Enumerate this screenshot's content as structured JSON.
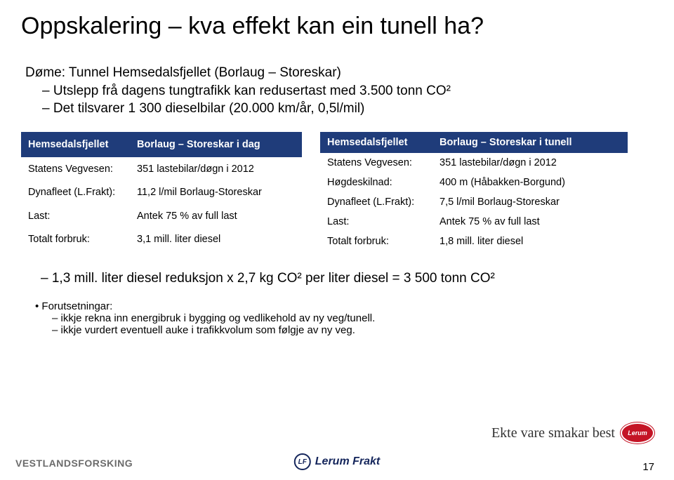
{
  "colors": {
    "header_bg": "#1f3c7a",
    "header_fg": "#ffffff",
    "title_color": "#000000",
    "body_text": "#000000",
    "logo_gray": "#6b6b6b",
    "logo_navy": "#14255b",
    "logo_red": "#c41425"
  },
  "title": "Oppskalering – kva effekt kan ein tunell ha?",
  "intro": {
    "line1": "Døme: Tunnel Hemsedalsfjellet (Borlaug – Storeskar)",
    "line2": "Utslepp frå dagens tungtrafikk kan redusertast med 3.500 tonn CO²",
    "line3": "Det tilsvarer 1 300 dieselbilar (20.000 km/år, 0,5l/mil)"
  },
  "table_left": {
    "header": {
      "c1": "Hemsedalsfjellet",
      "c2": "Borlaug – Storeskar i dag"
    },
    "rows": [
      {
        "c1": "Statens Vegvesen:",
        "c2": "351 lastebilar/døgn i 2012"
      },
      {
        "c1": "Dynafleet (L.Frakt):",
        "c2": "11,2 l/mil Borlaug-Storeskar"
      },
      {
        "c1": "Last:",
        "c2": "Antek 75 % av full last"
      },
      {
        "c1": "Totalt forbruk:",
        "c2": "3,1 mill. liter diesel"
      }
    ]
  },
  "table_right": {
    "header": {
      "c1": "Hemsedalsfjellet",
      "c2": "Borlaug – Storeskar i tunell"
    },
    "rows": [
      {
        "c1": "Statens Vegvesen:",
        "c2": "351 lastebilar/døgn i 2012"
      },
      {
        "c1": "Høgdeskilnad:",
        "c2": "400 m (Håbakken-Borgund)"
      },
      {
        "c1": "Dynafleet (L.Frakt):",
        "c2": "7,5 l/mil Borlaug-Storeskar"
      },
      {
        "c1": "Last:",
        "c2": "Antek 75 % av full last"
      },
      {
        "c1": "Totalt forbruk:",
        "c2": "1,8 mill. liter diesel"
      }
    ]
  },
  "footer_note": "1,3 mill. liter diesel reduksjon x 2,7 kg CO² per liter diesel = 3 500 tonn CO²",
  "assumptions": {
    "heading": "Forutsetningar:",
    "items": [
      "ikkje rekna inn energibruk i bygging og vedlikehold av ny veg/tunell.",
      "ikkje vurdert eventuell auke i trafikkvolum som følgje av ny veg."
    ]
  },
  "logos": {
    "left": "VESTLANDSFORSKING",
    "center_badge": "LF",
    "center_text": "Lerum Frakt",
    "right_oval": "Lerum"
  },
  "tagline": "Ekte vare smakar best",
  "page_number": "17"
}
